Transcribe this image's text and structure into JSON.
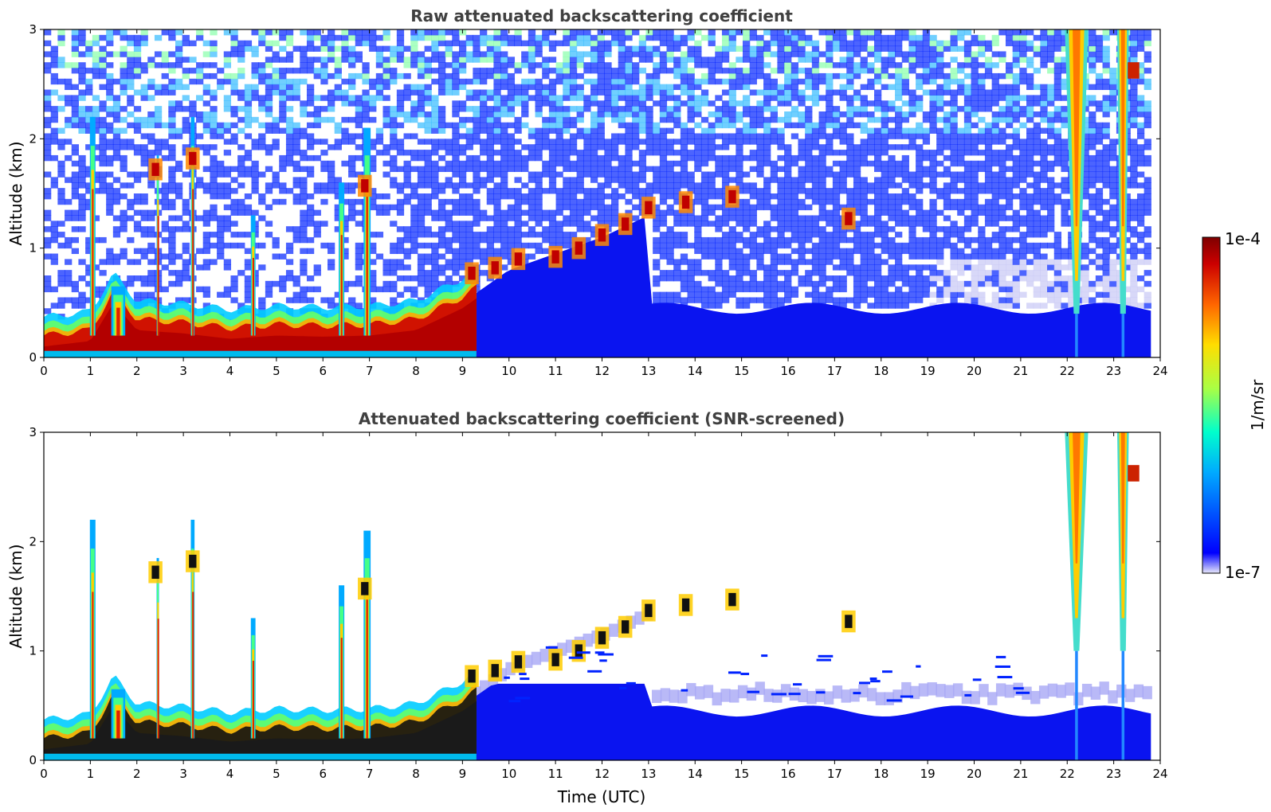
{
  "chart_data": [
    {
      "type": "heatmap",
      "title": "Raw attenuated backscattering coefficient",
      "xlabel": "",
      "ylabel": "Altitude (km)",
      "xlim": [
        0,
        24
      ],
      "ylim": [
        0,
        3
      ],
      "xticks": [
        "0",
        "1",
        "2",
        "3",
        "4",
        "5",
        "6",
        "7",
        "8",
        "9",
        "10",
        "11",
        "12",
        "13",
        "14",
        "15",
        "16",
        "17",
        "18",
        "19",
        "20",
        "21",
        "22",
        "23",
        "24"
      ],
      "yticks": [
        "0",
        "1",
        "2",
        "3"
      ],
      "features": {
        "boundary_layer_top_km": [
          [
            0,
            0.15
          ],
          [
            1,
            0.2
          ],
          [
            1.5,
            0.55
          ],
          [
            2,
            0.3
          ],
          [
            3,
            0.27
          ],
          [
            4,
            0.22
          ],
          [
            5,
            0.25
          ],
          [
            6,
            0.24
          ],
          [
            7,
            0.25
          ],
          [
            8,
            0.3
          ],
          [
            9,
            0.5
          ],
          [
            10,
            0.8
          ],
          [
            11,
            0.95
          ],
          [
            12,
            1.1
          ],
          [
            13,
            1.3
          ]
        ],
        "aerosol_layer_top_km": 0.45,
        "cloud_plumes_hours": [
          1.0,
          1.1,
          2.4,
          3.2,
          4.5,
          6.4,
          7.0,
          22.2,
          23.2
        ]
      }
    },
    {
      "type": "heatmap",
      "title": "Attenuated backscattering coefficient (SNR-screened)",
      "xlabel": "Time (UTC)",
      "ylabel": "Altitude (km)",
      "xlim": [
        0,
        24
      ],
      "ylim": [
        0,
        3
      ],
      "xticks": [
        "0",
        "1",
        "2",
        "3",
        "4",
        "5",
        "6",
        "7",
        "8",
        "9",
        "10",
        "11",
        "12",
        "13",
        "14",
        "15",
        "16",
        "17",
        "18",
        "19",
        "20",
        "21",
        "22",
        "23",
        "24"
      ],
      "yticks": [
        "0",
        "1",
        "2",
        "3"
      ],
      "features": {
        "boundary_layer_top_km": [
          [
            0,
            0.15
          ],
          [
            1,
            0.2
          ],
          [
            1.5,
            0.55
          ],
          [
            2,
            0.3
          ],
          [
            3,
            0.27
          ],
          [
            4,
            0.22
          ],
          [
            5,
            0.25
          ],
          [
            6,
            0.24
          ],
          [
            7,
            0.25
          ],
          [
            8,
            0.3
          ],
          [
            9,
            0.5
          ],
          [
            10,
            0.8
          ],
          [
            11,
            0.95
          ],
          [
            12,
            1.1
          ],
          [
            13,
            1.3
          ]
        ],
        "aerosol_layer_top_km": 0.45,
        "cloud_plumes_hours": [
          1.0,
          1.1,
          2.4,
          3.2,
          4.5,
          6.4,
          7.0,
          22.2,
          23.2
        ]
      }
    }
  ],
  "colorbar": {
    "max_label": "1e-4",
    "min_label": "1e-7",
    "unit_label": "1/m/sr",
    "colormap": "jet",
    "colors": [
      "#e8e8fa",
      "#0000ff",
      "#00aaff",
      "#00ffcc",
      "#aaff44",
      "#ffdd00",
      "#ff6600",
      "#cc0000",
      "#7f0000"
    ]
  }
}
